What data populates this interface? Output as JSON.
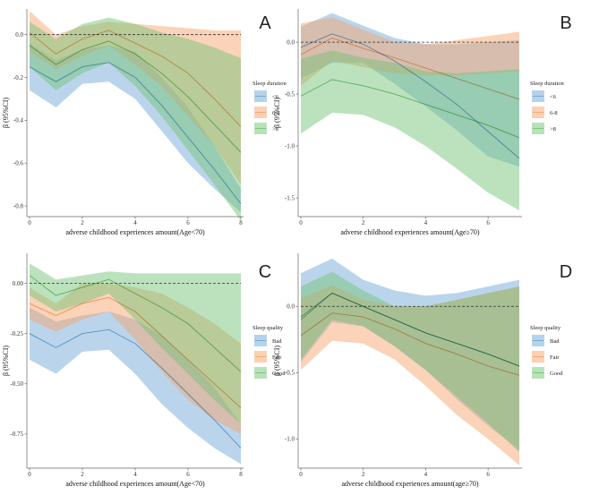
{
  "colors": {
    "blue": "#6fa8d6",
    "orange": "#f5a46a",
    "green": "#74c375",
    "zero_line": "#333333",
    "axis": "#666666"
  },
  "chart_data": [
    {
      "panel": "A",
      "type": "area",
      "xlabel": "adverse childhood experiences amount(Age<70)",
      "ylabel": "β (95%CI)",
      "xlim": [
        0,
        8
      ],
      "ylim": [
        -0.85,
        0.12
      ],
      "xticks": [
        0,
        2,
        4,
        6,
        8
      ],
      "yticks": [
        0.0,
        -0.2,
        -0.4,
        -0.6,
        -0.8
      ],
      "ytick_labels": [
        "0.0",
        "-0.2",
        "-0.4",
        "-0.6",
        "-0.8"
      ],
      "legend_title": "Sleep duration",
      "series": [
        {
          "name": "<6",
          "color": "blue",
          "x": [
            0,
            1,
            2,
            3,
            4,
            5,
            6,
            7,
            8
          ],
          "mid": [
            -0.15,
            -0.22,
            -0.15,
            -0.13,
            -0.2,
            -0.33,
            -0.48,
            -0.63,
            -0.79
          ],
          "lo": [
            -0.26,
            -0.34,
            -0.23,
            -0.22,
            -0.3,
            -0.45,
            -0.6,
            -0.72,
            -0.83
          ],
          "hi": [
            -0.04,
            -0.12,
            -0.07,
            -0.05,
            -0.08,
            -0.2,
            -0.34,
            -0.52,
            -0.72
          ]
        },
        {
          "name": "6-8",
          "color": "orange",
          "x": [
            0,
            1,
            2,
            3,
            4,
            5,
            6,
            7,
            8
          ],
          "mid": [
            0.01,
            -0.09,
            -0.02,
            0.02,
            -0.04,
            -0.1,
            -0.18,
            -0.3,
            -0.43
          ],
          "lo": [
            -0.08,
            -0.16,
            -0.1,
            -0.05,
            -0.14,
            -0.24,
            -0.38,
            -0.52,
            -0.7
          ],
          "hi": [
            0.11,
            0.0,
            0.04,
            0.06,
            0.05,
            0.04,
            0.03,
            0.02,
            0.02
          ]
        },
        {
          "name": ">8",
          "color": "green",
          "x": [
            0,
            1,
            2,
            3,
            4,
            5,
            6,
            7,
            8
          ],
          "mid": [
            -0.05,
            -0.14,
            -0.07,
            -0.03,
            -0.09,
            -0.18,
            -0.29,
            -0.42,
            -0.55
          ],
          "lo": [
            -0.15,
            -0.26,
            -0.18,
            -0.13,
            -0.24,
            -0.38,
            -0.54,
            -0.7,
            -0.87
          ],
          "hi": [
            0.06,
            -0.02,
            0.05,
            0.08,
            0.05,
            0.01,
            -0.02,
            -0.06,
            -0.11
          ]
        }
      ]
    },
    {
      "panel": "B",
      "type": "area",
      "xlabel": "adverse childhood experiences amount(Age≥70)",
      "ylabel": "β (95%CI)",
      "xlim": [
        0,
        7
      ],
      "ylim": [
        -1.68,
        0.32
      ],
      "xticks": [
        0,
        2,
        4,
        6
      ],
      "yticks": [
        0.0,
        -0.5,
        -1.0,
        -1.5
      ],
      "ytick_labels": [
        "0.0",
        "-0.5",
        "-1.0",
        "-1.5"
      ],
      "legend_title": "Sleep duration",
      "series": [
        {
          "name": "<6",
          "color": "blue",
          "x": [
            0,
            1,
            2,
            3,
            4,
            5,
            6,
            7
          ],
          "mid": [
            -0.05,
            0.08,
            -0.02,
            -0.18,
            -0.38,
            -0.6,
            -0.86,
            -1.12
          ],
          "lo": [
            -0.35,
            -0.2,
            -0.2,
            -0.4,
            -0.62,
            -0.85,
            -1.1,
            -1.2
          ],
          "hi": [
            0.15,
            0.28,
            0.16,
            0.04,
            -0.02,
            -0.02,
            0.0,
            0.02
          ]
        },
        {
          "name": "6-8",
          "color": "orange",
          "x": [
            0,
            1,
            2,
            3,
            4,
            5,
            6,
            7
          ],
          "mid": [
            -0.12,
            0.04,
            -0.06,
            -0.15,
            -0.25,
            -0.35,
            -0.45,
            -0.55
          ],
          "lo": [
            -0.42,
            -0.18,
            -0.24,
            -0.3,
            -0.32,
            -0.32,
            -0.3,
            -0.28
          ],
          "hi": [
            0.18,
            0.24,
            0.12,
            0.0,
            -0.02,
            0.02,
            0.06,
            0.1
          ]
        },
        {
          "name": ">8",
          "color": "green",
          "x": [
            0,
            1,
            2,
            3,
            4,
            5,
            6,
            7
          ],
          "mid": [
            -0.52,
            -0.36,
            -0.42,
            -0.5,
            -0.6,
            -0.7,
            -0.8,
            -0.92
          ],
          "lo": [
            -0.88,
            -0.68,
            -0.7,
            -0.82,
            -1.0,
            -1.22,
            -1.45,
            -1.62
          ],
          "hi": [
            -0.16,
            -0.08,
            -0.15,
            -0.2,
            -0.28,
            -0.3,
            -0.28,
            -0.26
          ]
        }
      ]
    },
    {
      "panel": "C",
      "type": "area",
      "xlabel": "adverse childhood experiences amount(Age<70)",
      "ylabel": "β (95%CI)",
      "xlim": [
        0,
        8
      ],
      "ylim": [
        -0.92,
        0.15
      ],
      "xticks": [
        0,
        2,
        4,
        6,
        8
      ],
      "yticks": [
        0.0,
        -0.25,
        -0.5,
        -0.75
      ],
      "ytick_labels": [
        "0.00",
        "-0.25",
        "-0.50",
        "-0.75"
      ],
      "legend_title": "Sleep quality",
      "series": [
        {
          "name": "Bad",
          "color": "blue",
          "x": [
            0,
            1,
            2,
            3,
            4,
            5,
            6,
            7,
            8
          ],
          "mid": [
            -0.25,
            -0.32,
            -0.25,
            -0.23,
            -0.3,
            -0.42,
            -0.55,
            -0.68,
            -0.82
          ],
          "lo": [
            -0.38,
            -0.45,
            -0.34,
            -0.33,
            -0.45,
            -0.6,
            -0.72,
            -0.82,
            -0.9
          ],
          "hi": [
            -0.12,
            -0.19,
            -0.16,
            -0.14,
            -0.18,
            -0.26,
            -0.38,
            -0.52,
            -0.7
          ]
        },
        {
          "name": "Fair",
          "color": "orange",
          "x": [
            0,
            1,
            2,
            3,
            4,
            5,
            6,
            7,
            8
          ],
          "mid": [
            -0.1,
            -0.16,
            -0.1,
            -0.07,
            -0.14,
            -0.26,
            -0.38,
            -0.5,
            -0.62
          ],
          "lo": [
            -0.18,
            -0.24,
            -0.18,
            -0.14,
            -0.28,
            -0.44,
            -0.58,
            -0.68,
            -0.75
          ],
          "hi": [
            -0.02,
            -0.1,
            0.0,
            0.0,
            -0.02,
            -0.05,
            -0.12,
            -0.2,
            -0.3
          ]
        },
        {
          "name": "Good",
          "color": "green",
          "x": [
            0,
            1,
            2,
            3,
            4,
            5,
            6,
            7,
            8
          ],
          "mid": [
            0.04,
            -0.06,
            -0.02,
            0.02,
            -0.05,
            -0.12,
            -0.2,
            -0.32,
            -0.44
          ],
          "lo": [
            -0.06,
            -0.14,
            -0.1,
            -0.05,
            -0.18,
            -0.32,
            -0.45,
            -0.58,
            -0.7
          ],
          "hi": [
            0.1,
            0.02,
            0.04,
            0.06,
            0.05,
            0.05,
            0.05,
            0.05,
            0.05
          ]
        }
      ]
    },
    {
      "panel": "D",
      "type": "area",
      "xlabel": "adverse childhood experiences amount(age≥70)",
      "ylabel": "β (95%CI)",
      "xlim": [
        0,
        7
      ],
      "ylim": [
        -1.22,
        0.4
      ],
      "xticks": [
        0,
        2,
        4,
        6
      ],
      "yticks": [
        0.0,
        -0.5,
        -1.0
      ],
      "ytick_labels": [
        "0.0",
        "-0.5",
        "-1.0"
      ],
      "legend_title": "Sleep quality",
      "series": [
        {
          "name": "Bad",
          "color": "blue",
          "x": [
            0,
            1,
            2,
            3,
            4,
            5,
            6,
            7
          ],
          "mid": [
            -0.08,
            0.1,
            0.0,
            -0.1,
            -0.2,
            -0.28,
            -0.36,
            -0.45
          ],
          "lo": [
            -0.42,
            -0.12,
            -0.15,
            -0.3,
            -0.48,
            -0.7,
            -0.9,
            -1.08
          ],
          "hi": [
            0.25,
            0.36,
            0.2,
            0.12,
            0.08,
            0.1,
            0.15,
            0.2
          ]
        },
        {
          "name": "Fair",
          "color": "orange",
          "x": [
            0,
            1,
            2,
            3,
            4,
            5,
            6,
            7
          ],
          "mid": [
            -0.22,
            -0.05,
            -0.08,
            -0.17,
            -0.28,
            -0.36,
            -0.45,
            -0.52
          ],
          "lo": [
            -0.48,
            -0.26,
            -0.28,
            -0.4,
            -0.6,
            -0.82,
            -1.0,
            -1.2
          ],
          "hi": [
            0.06,
            0.16,
            0.05,
            0.0,
            0.0,
            0.05,
            0.1,
            0.15
          ]
        },
        {
          "name": "Good",
          "color": "green",
          "x": [
            0,
            1,
            2,
            3,
            4,
            5,
            6,
            7
          ],
          "mid": [
            -0.1,
            0.1,
            0.0,
            -0.1,
            -0.2,
            -0.28,
            -0.36,
            -0.45
          ],
          "lo": [
            -0.4,
            -0.1,
            -0.15,
            -0.3,
            -0.48,
            -0.68,
            -0.88,
            -1.1
          ],
          "hi": [
            0.15,
            0.26,
            0.12,
            0.0,
            0.0,
            0.05,
            0.1,
            0.15
          ]
        }
      ]
    }
  ]
}
